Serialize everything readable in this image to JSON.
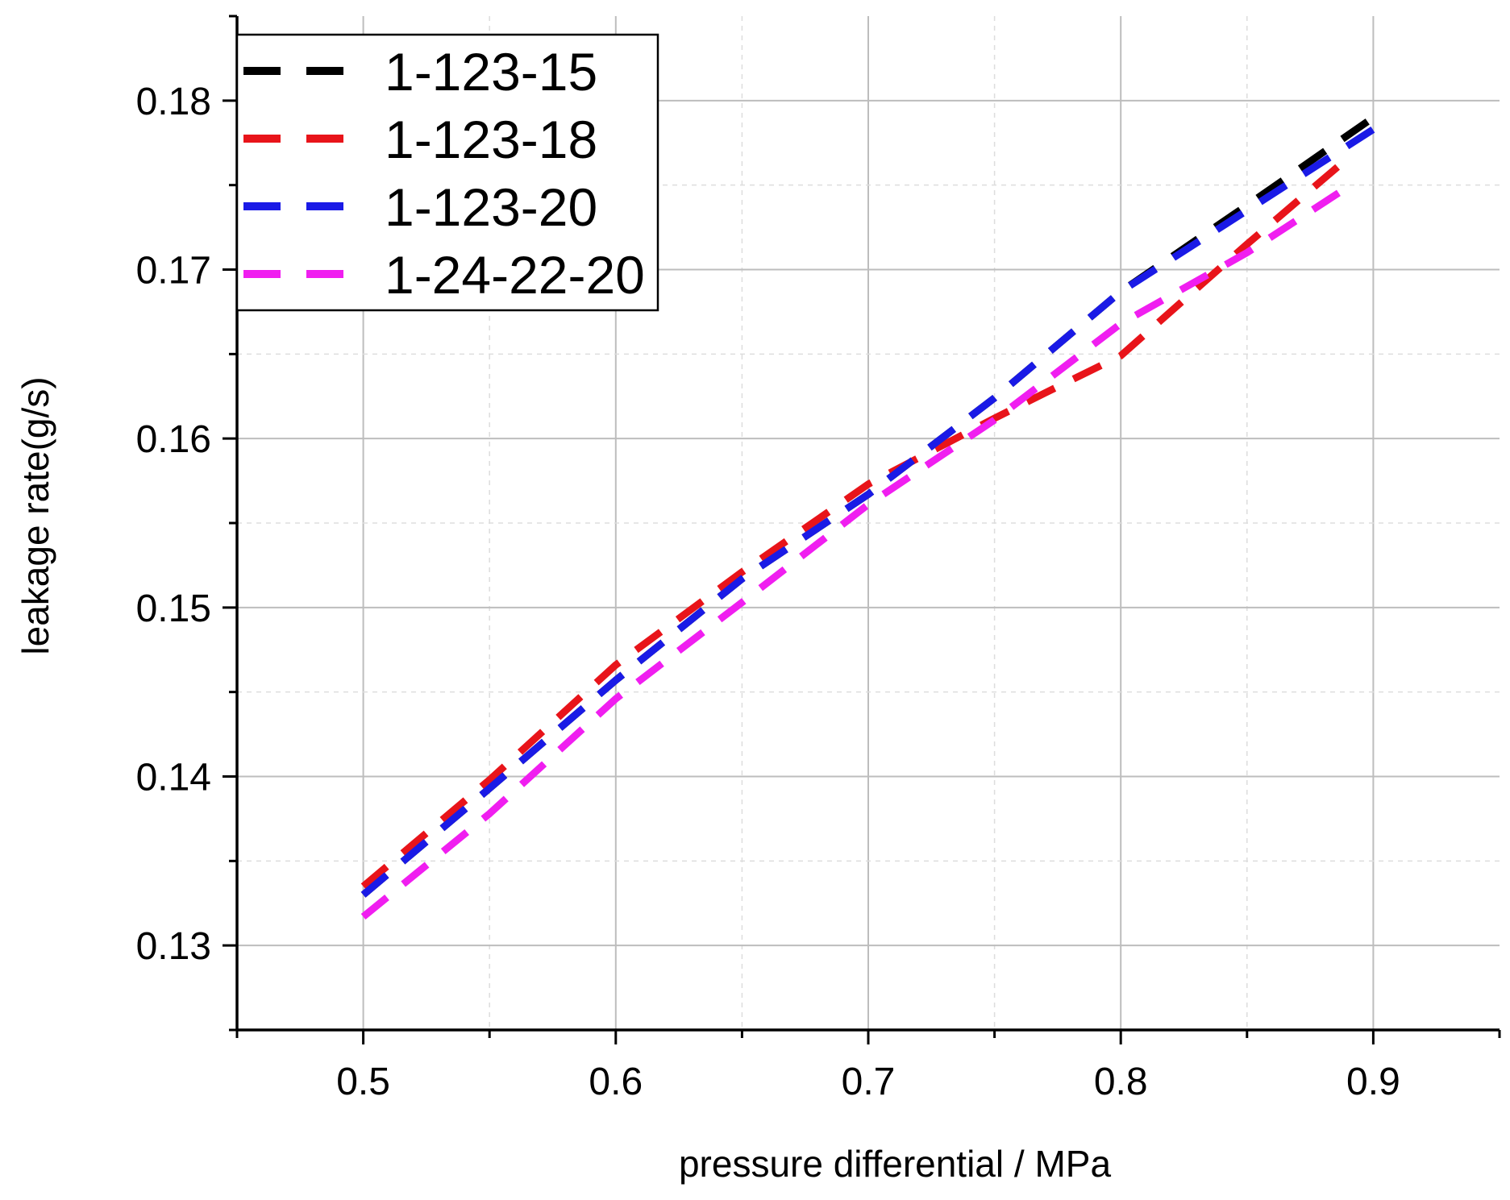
{
  "chart_data": {
    "type": "line",
    "title": "",
    "xlabel": "pressure differential / MPa",
    "ylabel": "leakage rate(g/s)",
    "xlim": [
      0.45,
      0.95
    ],
    "ylim": [
      0.125,
      0.185
    ],
    "xticks": [
      0.5,
      0.6,
      0.7,
      0.8,
      0.9
    ],
    "xtick_labels": [
      "0.5",
      "0.6",
      "0.7",
      "0.8",
      "0.9"
    ],
    "yticks": [
      0.13,
      0.14,
      0.15,
      0.16,
      0.17,
      0.18
    ],
    "ytick_labels": [
      "0.13",
      "0.14",
      "0.15",
      "0.16",
      "0.17",
      "0.18"
    ],
    "grid": true,
    "legend_position": "top-left",
    "series": [
      {
        "name": "1-123-15",
        "color": "#000000",
        "x": [
          0.5,
          0.55,
          0.6,
          0.65,
          0.7,
          0.75,
          0.8,
          0.85,
          0.9
        ],
        "y": [
          0.133,
          0.1393,
          0.1457,
          0.1517,
          0.1567,
          0.1624,
          0.1687,
          0.1738,
          0.179
        ]
      },
      {
        "name": "1-123-18",
        "color": "#e8141a",
        "x": [
          0.5,
          0.55,
          0.6,
          0.65,
          0.7,
          0.75,
          0.77,
          0.8,
          0.85,
          0.89
        ],
        "y": [
          0.1335,
          0.1398,
          0.1466,
          0.1521,
          0.1573,
          0.1612,
          0.1627,
          0.1649,
          0.1715,
          0.1766
        ]
      },
      {
        "name": "1-123-20",
        "color": "#1a1ae6",
        "x": [
          0.5,
          0.55,
          0.6,
          0.65,
          0.7,
          0.75,
          0.8,
          0.85,
          0.9
        ],
        "y": [
          0.133,
          0.1393,
          0.1457,
          0.1517,
          0.1567,
          0.1624,
          0.1687,
          0.1735,
          0.1783
        ]
      },
      {
        "name": "1-24-22-20",
        "color": "#f01ef0",
        "x": [
          0.5,
          0.55,
          0.6,
          0.65,
          0.7,
          0.75,
          0.8,
          0.85,
          0.89
        ],
        "y": [
          0.1317,
          0.1378,
          0.1446,
          0.1503,
          0.1561,
          0.1611,
          0.1668,
          0.171,
          0.1749
        ]
      }
    ]
  }
}
